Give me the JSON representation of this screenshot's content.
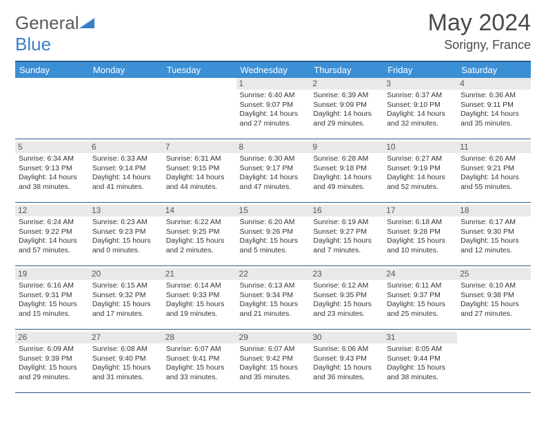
{
  "brand": {
    "part1": "General",
    "part2": "Blue"
  },
  "title": {
    "month": "May 2024",
    "location": "Sorigny, France"
  },
  "colors": {
    "header_bg": "#3b8fd4",
    "header_text": "#ffffff",
    "border": "#2a5a8a",
    "daynum_bg": "#e9e9e9",
    "brand_blue": "#3b7fc4"
  },
  "days": [
    "Sunday",
    "Monday",
    "Tuesday",
    "Wednesday",
    "Thursday",
    "Friday",
    "Saturday"
  ],
  "weeks": [
    [
      null,
      null,
      null,
      {
        "n": "1",
        "sr": "Sunrise: 6:40 AM",
        "ss": "Sunset: 9:07 PM",
        "d1": "Daylight: 14 hours",
        "d2": "and 27 minutes."
      },
      {
        "n": "2",
        "sr": "Sunrise: 6:39 AM",
        "ss": "Sunset: 9:09 PM",
        "d1": "Daylight: 14 hours",
        "d2": "and 29 minutes."
      },
      {
        "n": "3",
        "sr": "Sunrise: 6:37 AM",
        "ss": "Sunset: 9:10 PM",
        "d1": "Daylight: 14 hours",
        "d2": "and 32 minutes."
      },
      {
        "n": "4",
        "sr": "Sunrise: 6:36 AM",
        "ss": "Sunset: 9:11 PM",
        "d1": "Daylight: 14 hours",
        "d2": "and 35 minutes."
      }
    ],
    [
      {
        "n": "5",
        "sr": "Sunrise: 6:34 AM",
        "ss": "Sunset: 9:13 PM",
        "d1": "Daylight: 14 hours",
        "d2": "and 38 minutes."
      },
      {
        "n": "6",
        "sr": "Sunrise: 6:33 AM",
        "ss": "Sunset: 9:14 PM",
        "d1": "Daylight: 14 hours",
        "d2": "and 41 minutes."
      },
      {
        "n": "7",
        "sr": "Sunrise: 6:31 AM",
        "ss": "Sunset: 9:15 PM",
        "d1": "Daylight: 14 hours",
        "d2": "and 44 minutes."
      },
      {
        "n": "8",
        "sr": "Sunrise: 6:30 AM",
        "ss": "Sunset: 9:17 PM",
        "d1": "Daylight: 14 hours",
        "d2": "and 47 minutes."
      },
      {
        "n": "9",
        "sr": "Sunrise: 6:28 AM",
        "ss": "Sunset: 9:18 PM",
        "d1": "Daylight: 14 hours",
        "d2": "and 49 minutes."
      },
      {
        "n": "10",
        "sr": "Sunrise: 6:27 AM",
        "ss": "Sunset: 9:19 PM",
        "d1": "Daylight: 14 hours",
        "d2": "and 52 minutes."
      },
      {
        "n": "11",
        "sr": "Sunrise: 6:26 AM",
        "ss": "Sunset: 9:21 PM",
        "d1": "Daylight: 14 hours",
        "d2": "and 55 minutes."
      }
    ],
    [
      {
        "n": "12",
        "sr": "Sunrise: 6:24 AM",
        "ss": "Sunset: 9:22 PM",
        "d1": "Daylight: 14 hours",
        "d2": "and 57 minutes."
      },
      {
        "n": "13",
        "sr": "Sunrise: 6:23 AM",
        "ss": "Sunset: 9:23 PM",
        "d1": "Daylight: 15 hours",
        "d2": "and 0 minutes."
      },
      {
        "n": "14",
        "sr": "Sunrise: 6:22 AM",
        "ss": "Sunset: 9:25 PM",
        "d1": "Daylight: 15 hours",
        "d2": "and 2 minutes."
      },
      {
        "n": "15",
        "sr": "Sunrise: 6:20 AM",
        "ss": "Sunset: 9:26 PM",
        "d1": "Daylight: 15 hours",
        "d2": "and 5 minutes."
      },
      {
        "n": "16",
        "sr": "Sunrise: 6:19 AM",
        "ss": "Sunset: 9:27 PM",
        "d1": "Daylight: 15 hours",
        "d2": "and 7 minutes."
      },
      {
        "n": "17",
        "sr": "Sunrise: 6:18 AM",
        "ss": "Sunset: 9:28 PM",
        "d1": "Daylight: 15 hours",
        "d2": "and 10 minutes."
      },
      {
        "n": "18",
        "sr": "Sunrise: 6:17 AM",
        "ss": "Sunset: 9:30 PM",
        "d1": "Daylight: 15 hours",
        "d2": "and 12 minutes."
      }
    ],
    [
      {
        "n": "19",
        "sr": "Sunrise: 6:16 AM",
        "ss": "Sunset: 9:31 PM",
        "d1": "Daylight: 15 hours",
        "d2": "and 15 minutes."
      },
      {
        "n": "20",
        "sr": "Sunrise: 6:15 AM",
        "ss": "Sunset: 9:32 PM",
        "d1": "Daylight: 15 hours",
        "d2": "and 17 minutes."
      },
      {
        "n": "21",
        "sr": "Sunrise: 6:14 AM",
        "ss": "Sunset: 9:33 PM",
        "d1": "Daylight: 15 hours",
        "d2": "and 19 minutes."
      },
      {
        "n": "22",
        "sr": "Sunrise: 6:13 AM",
        "ss": "Sunset: 9:34 PM",
        "d1": "Daylight: 15 hours",
        "d2": "and 21 minutes."
      },
      {
        "n": "23",
        "sr": "Sunrise: 6:12 AM",
        "ss": "Sunset: 9:35 PM",
        "d1": "Daylight: 15 hours",
        "d2": "and 23 minutes."
      },
      {
        "n": "24",
        "sr": "Sunrise: 6:11 AM",
        "ss": "Sunset: 9:37 PM",
        "d1": "Daylight: 15 hours",
        "d2": "and 25 minutes."
      },
      {
        "n": "25",
        "sr": "Sunrise: 6:10 AM",
        "ss": "Sunset: 9:38 PM",
        "d1": "Daylight: 15 hours",
        "d2": "and 27 minutes."
      }
    ],
    [
      {
        "n": "26",
        "sr": "Sunrise: 6:09 AM",
        "ss": "Sunset: 9:39 PM",
        "d1": "Daylight: 15 hours",
        "d2": "and 29 minutes."
      },
      {
        "n": "27",
        "sr": "Sunrise: 6:08 AM",
        "ss": "Sunset: 9:40 PM",
        "d1": "Daylight: 15 hours",
        "d2": "and 31 minutes."
      },
      {
        "n": "28",
        "sr": "Sunrise: 6:07 AM",
        "ss": "Sunset: 9:41 PM",
        "d1": "Daylight: 15 hours",
        "d2": "and 33 minutes."
      },
      {
        "n": "29",
        "sr": "Sunrise: 6:07 AM",
        "ss": "Sunset: 9:42 PM",
        "d1": "Daylight: 15 hours",
        "d2": "and 35 minutes."
      },
      {
        "n": "30",
        "sr": "Sunrise: 6:06 AM",
        "ss": "Sunset: 9:43 PM",
        "d1": "Daylight: 15 hours",
        "d2": "and 36 minutes."
      },
      {
        "n": "31",
        "sr": "Sunrise: 6:05 AM",
        "ss": "Sunset: 9:44 PM",
        "d1": "Daylight: 15 hours",
        "d2": "and 38 minutes."
      },
      null
    ]
  ]
}
